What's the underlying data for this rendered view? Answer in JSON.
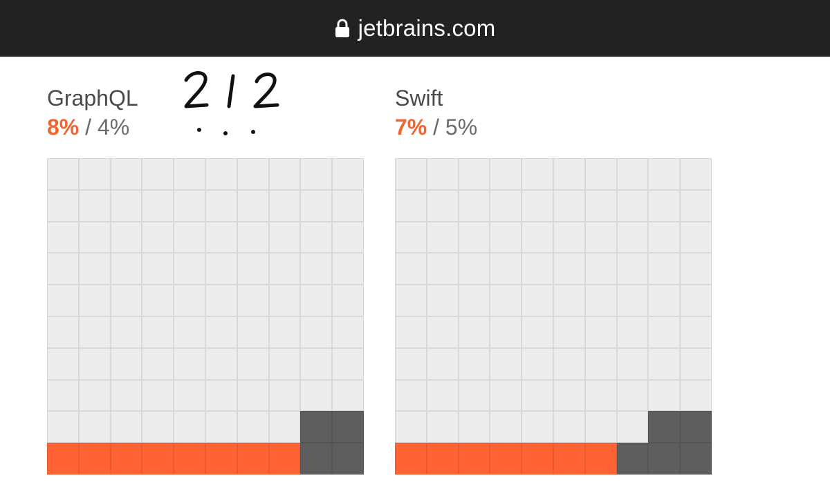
{
  "browser": {
    "url": "jetbrains.com",
    "bar_color": "#222222"
  },
  "annotation": {
    "handwritten_text": "2 / 2",
    "dots": "· · ·"
  },
  "panels": [
    {
      "title": "GraphQL",
      "primary_value": "8%",
      "separator": " / ",
      "secondary_value": "4%",
      "primary_cells": 8,
      "secondary_cells": 4,
      "highlighted": true
    },
    {
      "title": "Swift",
      "primary_value": "7%",
      "separator": " / ",
      "secondary_value": "5%",
      "primary_cells": 7,
      "secondary_cells": 5,
      "highlighted": false
    }
  ],
  "colors": {
    "primary": "#ff6333",
    "secondary": "#5e5e60",
    "empty": "#ececec"
  }
}
